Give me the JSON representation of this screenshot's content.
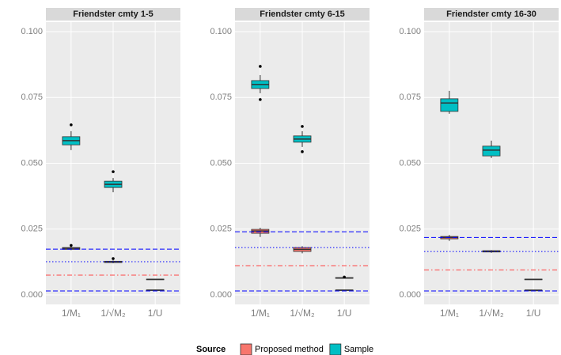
{
  "chart_data": [
    {
      "type": "box",
      "title": "Friendster cmty 1-5",
      "categories": [
        "1/M₁",
        "1/√M₂",
        "1/U"
      ],
      "ylim": [
        -0.0036,
        0.1036
      ],
      "yticks": [
        {
          "value": 0,
          "label": "0.000"
        },
        {
          "value": 0.025,
          "label": "0.025"
        },
        {
          "value": 0.05,
          "label": "0.050"
        },
        {
          "value": 0.075,
          "label": "0.075"
        },
        {
          "value": 0.1,
          "label": "0.100"
        }
      ],
      "legend_title": "Source",
      "series": [
        {
          "name": "Proposed method",
          "color": "#f8766d",
          "boxes": [
            {
              "min": 0.017,
              "q1": 0.0173,
              "median": 0.0177,
              "q3": 0.018,
              "max": 0.0183,
              "outliers": [
                0.0188
              ]
            },
            {
              "min": 0.012,
              "q1": 0.0123,
              "median": 0.0125,
              "q3": 0.0128,
              "max": 0.0131,
              "outliers": [
                0.0138
              ]
            },
            {
              "min": 0.0016,
              "q1": 0.0017,
              "median": 0.0018,
              "q3": 0.0019,
              "max": 0.002,
              "outliers": []
            }
          ]
        },
        {
          "name": "Sample",
          "color": "#00bfc4",
          "boxes": [
            {
              "min": 0.055,
              "q1": 0.057,
              "median": 0.0586,
              "q3": 0.0601,
              "max": 0.0622,
              "outliers": [
                0.0646
              ]
            },
            {
              "min": 0.039,
              "q1": 0.0408,
              "median": 0.042,
              "q3": 0.0432,
              "max": 0.0444,
              "outliers": [
                0.0468
              ]
            },
            {
              "min": 0.0057,
              "q1": 0.0058,
              "median": 0.0059,
              "q3": 0.006,
              "max": 0.0061,
              "outliers": []
            }
          ]
        }
      ],
      "hlines": [
        {
          "value": 0.0174,
          "color": "#0000ff",
          "dash": "dashed"
        },
        {
          "value": 0.0126,
          "color": "#0000ff",
          "dash": "dotted"
        },
        {
          "value": 0.0075,
          "color": "#ff4444",
          "dash": "dotdash"
        },
        {
          "value": 0.0015,
          "color": "#0000ff",
          "dash": "dashed"
        }
      ]
    },
    {
      "type": "box",
      "title": "Friendster cmty 6-15",
      "categories": [
        "1/M₁",
        "1/√M₂",
        "1/U"
      ],
      "ylim": [
        -0.0036,
        0.1036
      ],
      "yticks": [
        {
          "value": 0,
          "label": "0.000"
        },
        {
          "value": 0.025,
          "label": "0.025"
        },
        {
          "value": 0.05,
          "label": "0.050"
        },
        {
          "value": 0.075,
          "label": "0.075"
        },
        {
          "value": 0.1,
          "label": "0.100"
        }
      ],
      "series": [
        {
          "name": "Proposed method",
          "color": "#f8766d",
          "boxes": [
            {
              "min": 0.022,
              "q1": 0.0234,
              "median": 0.0243,
              "q3": 0.0249,
              "max": 0.0255,
              "outliers": []
            },
            {
              "min": 0.0158,
              "q1": 0.0165,
              "median": 0.0173,
              "q3": 0.018,
              "max": 0.0185,
              "outliers": []
            },
            {
              "min": 0.0017,
              "q1": 0.0018,
              "median": 0.0018,
              "q3": 0.0019,
              "max": 0.0019,
              "outliers": []
            }
          ]
        },
        {
          "name": "Sample",
          "color": "#00bfc4",
          "boxes": [
            {
              "min": 0.0766,
              "q1": 0.0784,
              "median": 0.0799,
              "q3": 0.0814,
              "max": 0.0835,
              "outliers": [
                0.0868,
                0.0742
              ]
            },
            {
              "min": 0.0562,
              "q1": 0.058,
              "median": 0.0592,
              "q3": 0.0604,
              "max": 0.0622,
              "outliers": [
                0.064,
                0.0544
              ]
            },
            {
              "min": 0.0062,
              "q1": 0.0063,
              "median": 0.0064,
              "q3": 0.0066,
              "max": 0.0066,
              "outliers": [
                0.0068
              ]
            }
          ]
        }
      ],
      "hlines": [
        {
          "value": 0.024,
          "color": "#0000ff",
          "dash": "dashed"
        },
        {
          "value": 0.018,
          "color": "#0000ff",
          "dash": "dotted"
        },
        {
          "value": 0.0111,
          "color": "#ff4444",
          "dash": "dotdash"
        },
        {
          "value": 0.0015,
          "color": "#0000ff",
          "dash": "dashed"
        }
      ]
    },
    {
      "type": "box",
      "title": "Friendster cmty 16-30",
      "categories": [
        "1/M₁",
        "1/√M₂",
        "1/U"
      ],
      "ylim": [
        -0.0036,
        0.1036
      ],
      "yticks": [
        {
          "value": 0,
          "label": "0.000"
        },
        {
          "value": 0.025,
          "label": "0.025"
        },
        {
          "value": 0.05,
          "label": "0.050"
        },
        {
          "value": 0.075,
          "label": "0.075"
        },
        {
          "value": 0.1,
          "label": "0.100"
        }
      ],
      "series": [
        {
          "name": "Proposed method",
          "color": "#f8766d",
          "boxes": [
            {
              "min": 0.0205,
              "q1": 0.0213,
              "median": 0.0218,
              "q3": 0.0222,
              "max": 0.0228,
              "outliers": []
            },
            {
              "min": 0.016,
              "q1": 0.0163,
              "median": 0.0165,
              "q3": 0.0168,
              "max": 0.017,
              "outliers": []
            },
            {
              "min": 0.0017,
              "q1": 0.0018,
              "median": 0.0018,
              "q3": 0.0018,
              "max": 0.0019,
              "outliers": []
            }
          ]
        },
        {
          "name": "Sample",
          "color": "#00bfc4",
          "boxes": [
            {
              "min": 0.0688,
              "q1": 0.0697,
              "median": 0.0729,
              "q3": 0.0745,
              "max": 0.0775,
              "outliers": []
            },
            {
              "min": 0.052,
              "q1": 0.0528,
              "median": 0.055,
              "q3": 0.0565,
              "max": 0.0586,
              "outliers": []
            },
            {
              "min": 0.0057,
              "q1": 0.0058,
              "median": 0.0059,
              "q3": 0.006,
              "max": 0.0061,
              "outliers": []
            }
          ]
        }
      ],
      "hlines": [
        {
          "value": 0.0218,
          "color": "#0000ff",
          "dash": "dashed"
        },
        {
          "value": 0.0165,
          "color": "#0000ff",
          "dash": "dotted"
        },
        {
          "value": 0.0095,
          "color": "#ff4444",
          "dash": "dotdash"
        },
        {
          "value": 0.0015,
          "color": "#0000ff",
          "dash": "dashed"
        }
      ]
    }
  ]
}
